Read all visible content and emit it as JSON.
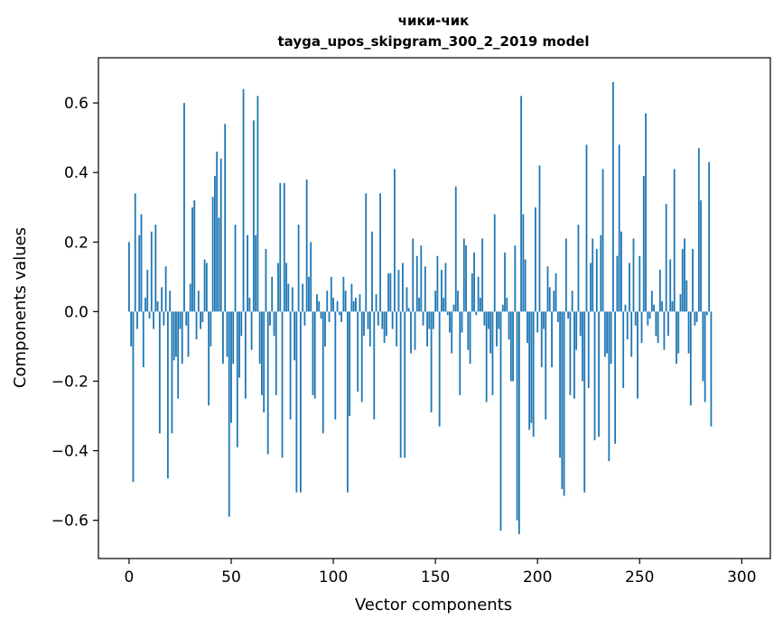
{
  "chart_data": {
    "type": "bar",
    "title": "чики-чик",
    "subtitle": "tayga_upos_skipgram_300_2_2019 model",
    "xlabel": "Vector components",
    "ylabel": "Components values",
    "xlim": [
      -15,
      314
    ],
    "ylim": [
      -0.71,
      0.73
    ],
    "x_ticks": [
      0,
      50,
      100,
      150,
      200,
      250,
      300
    ],
    "x_tick_labels": [
      "0",
      "50",
      "100",
      "150",
      "200",
      "250",
      "300"
    ],
    "y_ticks": [
      -0.6,
      -0.4,
      -0.2,
      0.0,
      0.2,
      0.4,
      0.6
    ],
    "y_tick_labels": [
      "−0.6",
      "−0.4",
      "−0.2",
      "0.0",
      "0.2",
      "0.4",
      "0.6"
    ],
    "bar_color": "#1f77b4",
    "grid": false,
    "values": [
      0.2,
      -0.1,
      -0.49,
      0.34,
      -0.05,
      0.22,
      0.28,
      -0.16,
      0.04,
      0.12,
      -0.02,
      0.23,
      -0.05,
      0.25,
      0.03,
      -0.35,
      0.07,
      -0.04,
      0.13,
      -0.48,
      0.06,
      -0.35,
      -0.14,
      -0.13,
      -0.25,
      -0.05,
      -0.15,
      0.6,
      -0.04,
      -0.13,
      0.08,
      0.3,
      0.32,
      -0.08,
      0.06,
      -0.05,
      -0.03,
      0.15,
      0.14,
      -0.27,
      -0.1,
      0.33,
      0.39,
      0.46,
      0.27,
      0.44,
      -0.15,
      0.54,
      -0.13,
      -0.59,
      -0.32,
      -0.15,
      0.25,
      -0.39,
      -0.19,
      -0.07,
      0.64,
      -0.25,
      0.22,
      0.04,
      -0.11,
      0.55,
      0.22,
      0.62,
      -0.15,
      -0.24,
      -0.29,
      0.18,
      -0.41,
      -0.04,
      0.1,
      -0.07,
      -0.24,
      0.14,
      0.37,
      -0.42,
      0.37,
      0.14,
      0.08,
      -0.31,
      0.07,
      -0.14,
      -0.52,
      0.25,
      -0.52,
      0.08,
      -0.04,
      0.38,
      0.1,
      0.2,
      -0.24,
      -0.25,
      0.05,
      0.03,
      -0.02,
      -0.35,
      -0.1,
      0.06,
      -0.03,
      0.1,
      0.04,
      -0.31,
      0.03,
      -0.01,
      -0.03,
      0.1,
      0.06,
      -0.52,
      -0.3,
      0.08,
      0.03,
      0.04,
      -0.23,
      0.05,
      -0.26,
      -0.07,
      0.34,
      -0.05,
      -0.1,
      0.23,
      -0.31,
      0.05,
      -0.04,
      0.34,
      -0.05,
      -0.09,
      -0.07,
      0.11,
      0.11,
      -0.05,
      0.41,
      -0.1,
      0.12,
      -0.42,
      0.14,
      -0.42,
      0.07,
      0.01,
      -0.12,
      0.21,
      -0.11,
      0.16,
      0.04,
      0.19,
      -0.04,
      0.13,
      -0.1,
      -0.05,
      -0.29,
      -0.05,
      0.06,
      0.16,
      -0.33,
      0.12,
      0.04,
      0.14,
      -0.01,
      -0.06,
      -0.12,
      0.02,
      0.36,
      0.06,
      -0.24,
      -0.06,
      0.21,
      0.19,
      -0.11,
      -0.15,
      0.11,
      0.17,
      -0.01,
      0.1,
      0.04,
      0.21,
      -0.04,
      -0.26,
      -0.05,
      -0.12,
      -0.24,
      0.28,
      -0.1,
      -0.05,
      -0.63,
      0.02,
      0.17,
      0.04,
      -0.08,
      -0.2,
      -0.2,
      0.19,
      -0.6,
      -0.64,
      0.62,
      0.28,
      0.15,
      -0.09,
      -0.34,
      -0.32,
      -0.36,
      0.3,
      -0.06,
      0.42,
      -0.16,
      -0.05,
      -0.31,
      0.13,
      0.07,
      -0.16,
      0.06,
      0.11,
      -0.03,
      -0.42,
      -0.51,
      -0.53,
      0.21,
      -0.02,
      -0.24,
      0.06,
      -0.25,
      -0.11,
      0.25,
      -0.07,
      -0.2,
      -0.52,
      0.48,
      -0.22,
      0.14,
      0.21,
      -0.37,
      0.18,
      -0.36,
      0.22,
      0.41,
      -0.13,
      -0.12,
      -0.43,
      -0.15,
      0.66,
      -0.38,
      0.16,
      0.48,
      0.23,
      -0.22,
      0.02,
      -0.08,
      0.14,
      -0.13,
      0.21,
      -0.04,
      -0.25,
      0.16,
      -0.09,
      0.39,
      0.57,
      -0.04,
      -0.02,
      0.06,
      0.02,
      -0.07,
      -0.09,
      0.12,
      0.03,
      -0.11,
      0.31,
      -0.07,
      0.15,
      0.03,
      0.41,
      -0.15,
      -0.12,
      0.05,
      0.18,
      0.21,
      0.09,
      -0.12,
      -0.27,
      0.18,
      -0.04,
      -0.03,
      0.47,
      0.32,
      -0.2,
      -0.26,
      -0.01,
      0.43,
      -0.33
    ]
  }
}
